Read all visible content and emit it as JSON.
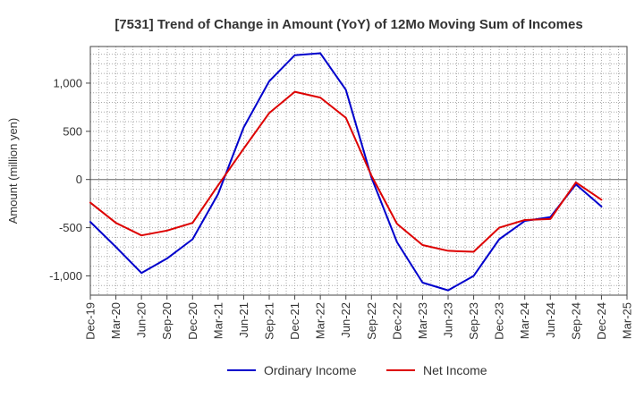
{
  "chart_data": {
    "type": "line",
    "title": "[7531]  Trend of Change in Amount (YoY) of 12Mo Moving Sum of Incomes",
    "xlabel": "",
    "ylabel": "Amount (million yen)",
    "ylim": [
      -1200,
      1380
    ],
    "yticks": [
      -1000,
      -500,
      0,
      500,
      1000
    ],
    "ytick_labels": [
      "-1,000",
      "-500",
      "0",
      "500",
      "1,000"
    ],
    "x_tick_labels": [
      "Dec-19",
      "Mar-20",
      "Jun-20",
      "Sep-20",
      "Dec-20",
      "Mar-21",
      "Jun-21",
      "Sep-21",
      "Dec-21",
      "Mar-22",
      "Jun-22",
      "Sep-22",
      "Dec-22",
      "Mar-23",
      "Jun-23",
      "Sep-23",
      "Dec-23",
      "Mar-24",
      "Jun-24",
      "Sep-24",
      "Dec-24",
      "Mar-25"
    ],
    "grid": true,
    "legend_position": "bottom",
    "series": [
      {
        "name": "Ordinary Income",
        "color": "#0000cc",
        "values": [
          -440,
          -700,
          -970,
          -820,
          -620,
          -150,
          540,
          1020,
          1290,
          1310,
          930,
          20,
          -650,
          -1070,
          -1150,
          -1000,
          -620,
          -430,
          -390,
          -50,
          -280
        ]
      },
      {
        "name": "Net Income",
        "color": "#dd0000",
        "values": [
          -240,
          -450,
          -580,
          -530,
          -450,
          -60,
          320,
          690,
          910,
          850,
          640,
          40,
          -460,
          -680,
          -740,
          -750,
          -500,
          -420,
          -410,
          -30,
          -210
        ]
      }
    ]
  }
}
